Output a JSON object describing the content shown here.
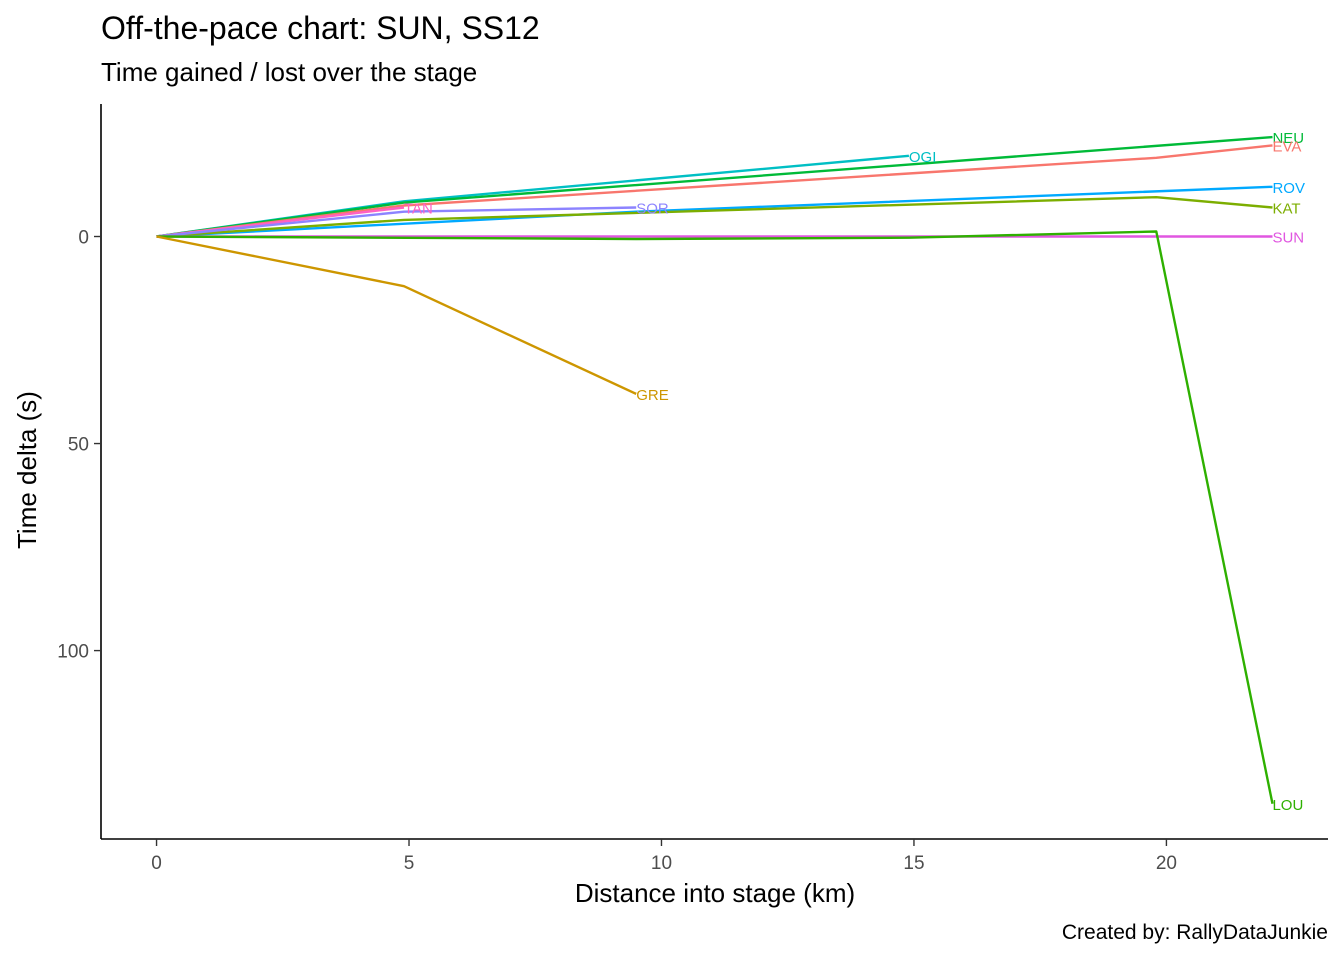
{
  "chart_data": {
    "type": "line",
    "title": "Off-the-pace chart: SUN, SS12",
    "subtitle": "Time gained / lost over the stage",
    "xlabel": "Distance into stage (km)",
    "ylabel": "Time delta (s)",
    "caption": "Created by: RallyDataJunkie",
    "xlim": [
      -1.1,
      23.2
    ],
    "ylim": [
      145.5,
      -32
    ],
    "y_reversed": true,
    "x_ticks": [
      0,
      5,
      10,
      15,
      20
    ],
    "y_ticks": [
      0,
      50,
      100
    ],
    "grid": false,
    "legend": "none (series labelled at line ends)",
    "series": [
      {
        "name": "OGI",
        "color": "#00BFC4",
        "x": [
          0,
          4.9,
          14.9
        ],
        "y": [
          0,
          -8.5,
          -19.5
        ]
      },
      {
        "name": "NEU",
        "color": "#00BA38",
        "x": [
          0,
          4.9,
          22.1
        ],
        "y": [
          0,
          -8.2,
          -24
        ]
      },
      {
        "name": "EVA",
        "color": "#F8766D",
        "x": [
          0,
          4.9,
          19.8,
          22.1
        ],
        "y": [
          0,
          -7.5,
          -19,
          -22
        ]
      },
      {
        "name": "ROV",
        "color": "#00A9FF",
        "x": [
          0,
          9.5,
          22.1
        ],
        "y": [
          0,
          -6,
          -12
        ]
      },
      {
        "name": "KAT",
        "color": "#7CAE00",
        "x": [
          0,
          4.9,
          19.8,
          22.1
        ],
        "y": [
          0,
          -4,
          -9.5,
          -7
        ]
      },
      {
        "name": "TAN",
        "color": "#FF61C3",
        "x": [
          0,
          4.9
        ],
        "y": [
          0,
          -7
        ]
      },
      {
        "name": "SOR",
        "color": "#8C83FF",
        "x": [
          0,
          4.9,
          9.5
        ],
        "y": [
          0,
          -6,
          -7
        ]
      },
      {
        "name": "SUN",
        "color": "#E056E0",
        "x": [
          0,
          22.1
        ],
        "y": [
          0,
          0
        ]
      },
      {
        "name": "LOU",
        "color": "#2EB000",
        "x": [
          0,
          9.5,
          14.9,
          19.8,
          22.1
        ],
        "y": [
          0,
          0.6,
          0.3,
          -1.2,
          137
        ]
      },
      {
        "name": "GRE",
        "color": "#CD9600",
        "x": [
          0,
          4.9,
          9.5
        ],
        "y": [
          0,
          12,
          38
        ]
      }
    ]
  }
}
